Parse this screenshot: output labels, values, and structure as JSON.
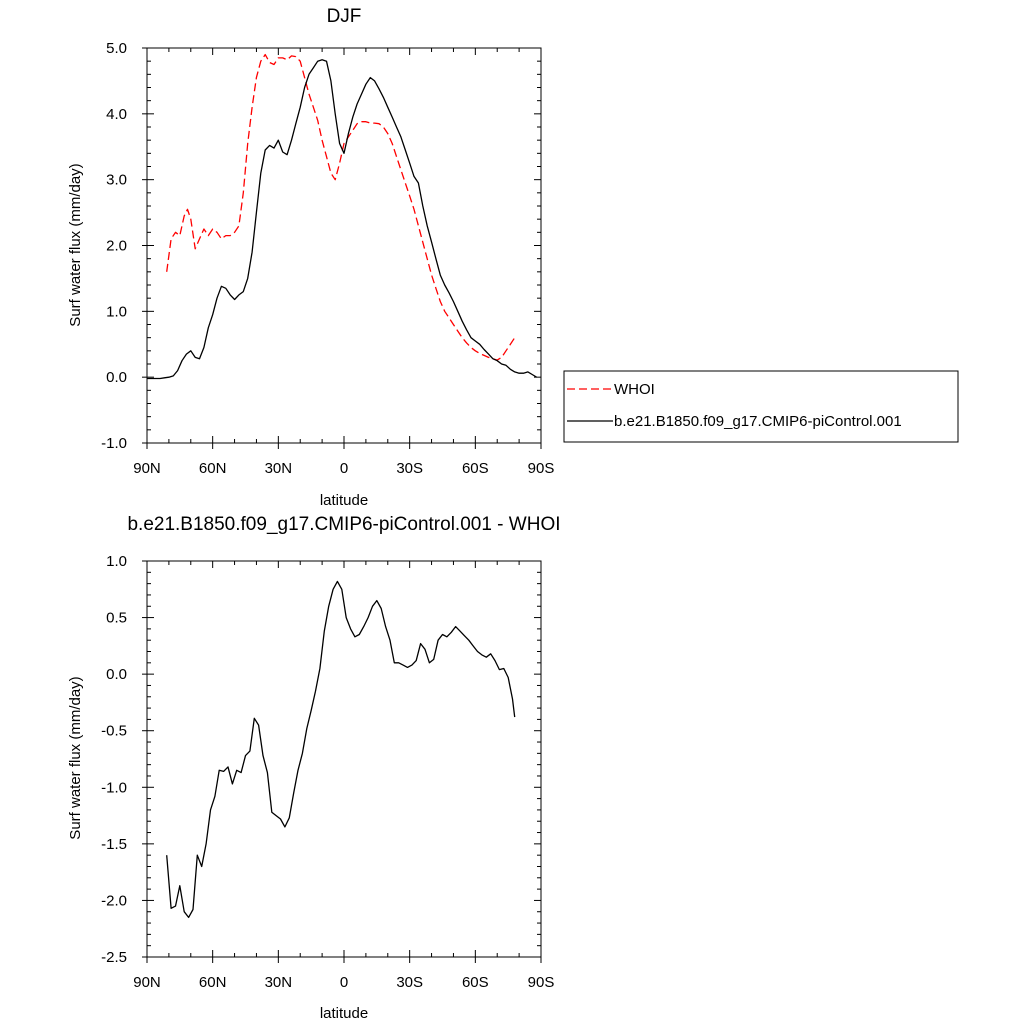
{
  "chart_data": [
    {
      "type": "line",
      "title": "DJF",
      "xlabel": "latitude",
      "ylabel": "Surf water flux (mm/day)",
      "xlim": [
        90,
        -90
      ],
      "ylim": [
        -1.0,
        5.0
      ],
      "xtick_values": [
        90,
        60,
        30,
        0,
        -30,
        -60,
        -90
      ],
      "xtick_labels": [
        "90N",
        "60N",
        "30N",
        "0",
        "30S",
        "60S",
        "90S"
      ],
      "ytick_values": [
        -1,
        0,
        1,
        2,
        3,
        4,
        5
      ],
      "ytick_labels": [
        "-1.0",
        "0.0",
        "1.0",
        "2.0",
        "3.0",
        "4.0",
        "5.0"
      ],
      "legend_position": "right",
      "series": [
        {
          "name": "WHOI",
          "color": "#ff0000",
          "dash": "dashed",
          "x": [
            81,
            79,
            77,
            75,
            73,
            71.5,
            70,
            68,
            66,
            64,
            62,
            60,
            58,
            56,
            54,
            52,
            50,
            48,
            46,
            44,
            42,
            40,
            38,
            36,
            34,
            32,
            30,
            28,
            26,
            24,
            22,
            20,
            18,
            16,
            14,
            12,
            10,
            8,
            6,
            4,
            2,
            0,
            -2,
            -4,
            -6,
            -8,
            -10,
            -12,
            -14,
            -16,
            -18,
            -20,
            -22,
            -24,
            -26,
            -28,
            -30,
            -32,
            -34,
            -36,
            -38,
            -40,
            -42,
            -44,
            -46,
            -48,
            -50,
            -52,
            -54,
            -56,
            -58,
            -60,
            -62,
            -64,
            -66,
            -68,
            -70,
            -72,
            -74,
            -76,
            -78
          ],
          "y": [
            1.6,
            2.1,
            2.2,
            2.15,
            2.45,
            2.55,
            2.4,
            1.95,
            2.1,
            2.25,
            2.15,
            2.25,
            2.2,
            2.1,
            2.15,
            2.15,
            2.2,
            2.3,
            2.8,
            3.55,
            4.1,
            4.55,
            4.8,
            4.9,
            4.78,
            4.75,
            4.85,
            4.85,
            4.82,
            4.88,
            4.87,
            4.8,
            4.55,
            4.3,
            4.1,
            3.9,
            3.6,
            3.35,
            3.1,
            3.0,
            3.25,
            3.55,
            3.65,
            3.75,
            3.85,
            3.88,
            3.88,
            3.86,
            3.86,
            3.85,
            3.8,
            3.7,
            3.55,
            3.35,
            3.15,
            2.95,
            2.75,
            2.55,
            2.3,
            2.05,
            1.8,
            1.55,
            1.35,
            1.15,
            1.0,
            0.9,
            0.8,
            0.7,
            0.6,
            0.52,
            0.45,
            0.4,
            0.36,
            0.33,
            0.3,
            0.28,
            0.26,
            0.3,
            0.4,
            0.5,
            0.6
          ]
        },
        {
          "name": "b.e21.B1850.f09_g17.CMIP6-piControl.001",
          "color": "#000000",
          "dash": "solid",
          "x": [
            90,
            86,
            84,
            82,
            80,
            78,
            76,
            74,
            72,
            70,
            68,
            66,
            64,
            62,
            60,
            58,
            56,
            54,
            52,
            50,
            48,
            46,
            44,
            42,
            40,
            38,
            36,
            34,
            32,
            30,
            28,
            26,
            24,
            22,
            20,
            18,
            16,
            14,
            12,
            10,
            8,
            6,
            4,
            2,
            0,
            -2,
            -4,
            -6,
            -8,
            -10,
            -12,
            -14,
            -16,
            -18,
            -20,
            -22,
            -24,
            -26,
            -28,
            -30,
            -32,
            -34,
            -36,
            -38,
            -40,
            -42,
            -44,
            -46,
            -48,
            -50,
            -52,
            -54,
            -56,
            -58,
            -60,
            -62,
            -64,
            -66,
            -68,
            -70,
            -72,
            -74,
            -76,
            -78,
            -80,
            -82,
            -84,
            -86,
            -88
          ],
          "y": [
            -0.02,
            -0.02,
            -0.02,
            -0.01,
            0.0,
            0.02,
            0.1,
            0.25,
            0.35,
            0.4,
            0.3,
            0.28,
            0.45,
            0.75,
            0.95,
            1.2,
            1.38,
            1.35,
            1.25,
            1.18,
            1.25,
            1.3,
            1.5,
            1.9,
            2.5,
            3.1,
            3.45,
            3.52,
            3.48,
            3.6,
            3.42,
            3.38,
            3.6,
            3.85,
            4.1,
            4.4,
            4.6,
            4.7,
            4.8,
            4.82,
            4.8,
            4.5,
            4.0,
            3.55,
            3.4,
            3.7,
            3.95,
            4.15,
            4.3,
            4.45,
            4.55,
            4.5,
            4.38,
            4.25,
            4.1,
            3.95,
            3.8,
            3.65,
            3.45,
            3.25,
            3.05,
            2.95,
            2.6,
            2.3,
            2.05,
            1.8,
            1.55,
            1.4,
            1.28,
            1.15,
            1.0,
            0.85,
            0.72,
            0.6,
            0.55,
            0.5,
            0.42,
            0.35,
            0.28,
            0.25,
            0.2,
            0.18,
            0.12,
            0.08,
            0.06,
            0.06,
            0.08,
            0.04,
            0.0
          ]
        }
      ]
    },
    {
      "type": "line",
      "title": "b.e21.B1850.f09_g17.CMIP6-piControl.001 - WHOI",
      "xlabel": "latitude",
      "ylabel": "Surf water flux (mm/day)",
      "xlim": [
        90,
        -90
      ],
      "ylim": [
        -2.5,
        1.0
      ],
      "xtick_values": [
        90,
        60,
        30,
        0,
        -30,
        -60,
        -90
      ],
      "xtick_labels": [
        "90N",
        "60N",
        "30N",
        "0",
        "30S",
        "60S",
        "90S"
      ],
      "ytick_values": [
        -2.5,
        -2.0,
        -1.5,
        -1.0,
        -0.5,
        0.0,
        0.5,
        1.0
      ],
      "ytick_labels": [
        "-2.5",
        "-2.0",
        "-1.5",
        "-1.0",
        "-0.5",
        "0.0",
        "0.5",
        "1.0"
      ],
      "series": [
        {
          "color": "#000000",
          "dash": "solid",
          "x": [
            81,
            79,
            77,
            75,
            73,
            71,
            69,
            67,
            65,
            63,
            61,
            59,
            57,
            55,
            53,
            51,
            49,
            47,
            45,
            43,
            41,
            39,
            37,
            35,
            33,
            31,
            29,
            27,
            25,
            23,
            21,
            19,
            17,
            15,
            13,
            11,
            9,
            7,
            5,
            3,
            1,
            -1,
            -3,
            -5,
            -7,
            -9,
            -11,
            -13,
            -15,
            -17,
            -19,
            -21,
            -23,
            -25,
            -27,
            -29,
            -31,
            -33,
            -35,
            -37,
            -39,
            -41,
            -43,
            -45,
            -47,
            -49,
            -51,
            -53,
            -55,
            -57,
            -59,
            -61,
            -63,
            -65,
            -67,
            -69,
            -71,
            -73,
            -75,
            -77,
            -78
          ],
          "y": [
            -1.6,
            -2.07,
            -2.05,
            -1.87,
            -2.1,
            -2.15,
            -2.08,
            -1.6,
            -1.7,
            -1.5,
            -1.2,
            -1.08,
            -0.85,
            -0.86,
            -0.82,
            -0.97,
            -0.85,
            -0.87,
            -0.72,
            -0.68,
            -0.39,
            -0.45,
            -0.72,
            -0.87,
            -1.22,
            -1.25,
            -1.28,
            -1.35,
            -1.27,
            -1.05,
            -0.85,
            -0.7,
            -0.48,
            -0.32,
            -0.15,
            0.05,
            0.38,
            0.6,
            0.75,
            0.82,
            0.75,
            0.5,
            0.4,
            0.33,
            0.35,
            0.42,
            0.5,
            0.6,
            0.65,
            0.58,
            0.42,
            0.3,
            0.1,
            0.1,
            0.08,
            0.06,
            0.08,
            0.12,
            0.27,
            0.22,
            0.1,
            0.13,
            0.3,
            0.35,
            0.33,
            0.37,
            0.42,
            0.38,
            0.34,
            0.3,
            0.25,
            0.2,
            0.17,
            0.15,
            0.18,
            0.12,
            0.04,
            0.05,
            -0.03,
            -0.22,
            -0.38
          ]
        }
      ]
    }
  ]
}
